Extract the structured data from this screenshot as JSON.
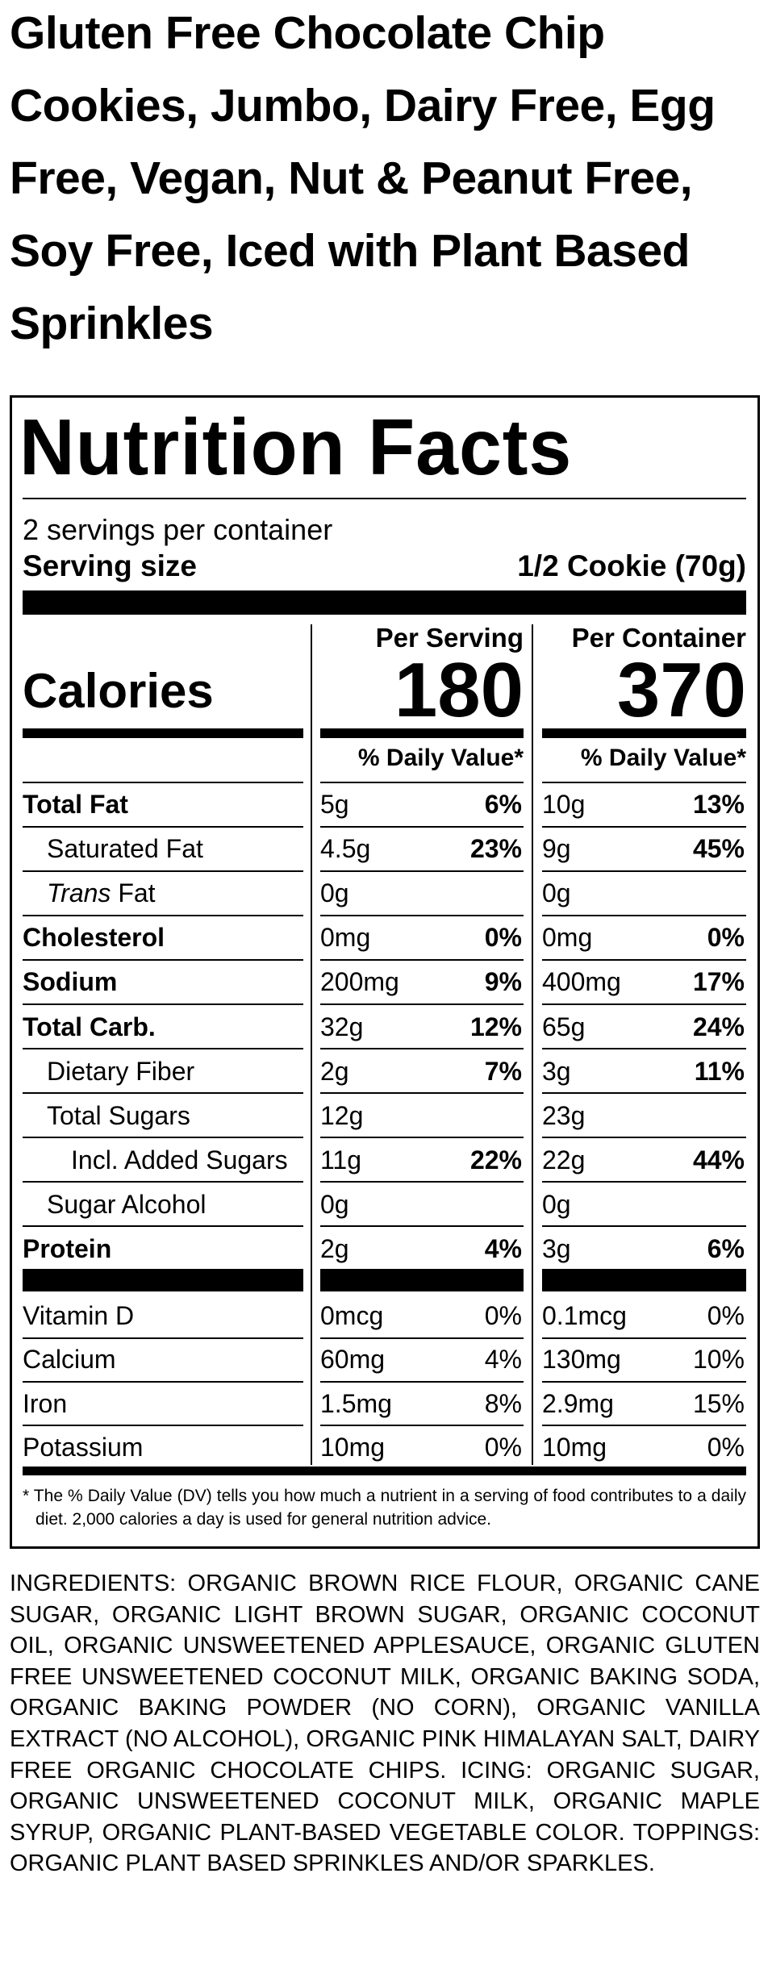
{
  "title": "Gluten Free Chocolate Chip Cookies, Jumbo, Dairy Free, Egg Free, Vegan, Nut & Peanut Free, Soy Free, Iced with Plant Based Sprinkles",
  "nutrition_facts": {
    "heading": "Nutrition Facts",
    "servings_per_container": "2 servings per container",
    "serving_size_label": "Serving size",
    "serving_size": "1/2 Cookie (70g)",
    "columns": [
      "Per Serving",
      "Per Container"
    ],
    "calories_label": "Calories",
    "calories": [
      180,
      370
    ],
    "dv_headers": [
      "% Daily Value*",
      "% Daily Value*"
    ],
    "rows": [
      {
        "name": "Total Fat",
        "bold": true,
        "serving": {
          "amount": "5g",
          "dv": "6%"
        },
        "container": {
          "amount": "10g",
          "dv": "13%"
        }
      },
      {
        "name": "Saturated Fat",
        "indent": 1,
        "serving": {
          "amount": "4.5g",
          "dv": "23%"
        },
        "container": {
          "amount": "9g",
          "dv": "45%"
        }
      },
      {
        "name_italic": "Trans",
        "name": "Fat",
        "indent": 1,
        "serving": {
          "amount": "0g"
        },
        "container": {
          "amount": "0g"
        }
      },
      {
        "name": "Cholesterol",
        "bold": true,
        "serving": {
          "amount": "0mg",
          "dv": "0%"
        },
        "container": {
          "amount": "0mg",
          "dv": "0%"
        }
      },
      {
        "name": "Sodium",
        "bold": true,
        "serving": {
          "amount": "200mg",
          "dv": "9%"
        },
        "container": {
          "amount": "400mg",
          "dv": "17%"
        }
      },
      {
        "name": "Total Carb.",
        "bold": true,
        "serving": {
          "amount": "32g",
          "dv": "12%"
        },
        "container": {
          "amount": "65g",
          "dv": "24%"
        }
      },
      {
        "name": "Dietary Fiber",
        "indent": 1,
        "serving": {
          "amount": "2g",
          "dv": "7%"
        },
        "container": {
          "amount": "3g",
          "dv": "11%"
        }
      },
      {
        "name": "Total Sugars",
        "indent": 1,
        "serving": {
          "amount": "12g"
        },
        "container": {
          "amount": "23g"
        }
      },
      {
        "name": "Incl. Added Sugars",
        "indent": 2,
        "serving": {
          "amount": "11g",
          "dv": "22%"
        },
        "container": {
          "amount": "22g",
          "dv": "44%"
        }
      },
      {
        "name": "Sugar Alcohol",
        "indent": 1,
        "serving": {
          "amount": "0g"
        },
        "container": {
          "amount": "0g"
        }
      },
      {
        "name": "Protein",
        "bold": true,
        "serving": {
          "amount": "2g",
          "dv": "4%"
        },
        "container": {
          "amount": "3g",
          "dv": "6%"
        }
      }
    ],
    "vitamins": [
      {
        "name": "Vitamin D",
        "serving": {
          "amount": "0mcg",
          "dv": "0%"
        },
        "container": {
          "amount": "0.1mcg",
          "dv": "0%"
        }
      },
      {
        "name": "Calcium",
        "serving": {
          "amount": "60mg",
          "dv": "4%"
        },
        "container": {
          "amount": "130mg",
          "dv": "10%"
        }
      },
      {
        "name": "Iron",
        "serving": {
          "amount": "1.5mg",
          "dv": "8%"
        },
        "container": {
          "amount": "2.9mg",
          "dv": "15%"
        }
      },
      {
        "name": "Potassium",
        "serving": {
          "amount": "10mg",
          "dv": "0%"
        },
        "container": {
          "amount": "10mg",
          "dv": "0%"
        }
      }
    ],
    "footnote": "* The % Daily Value (DV) tells you how much a nutrient in a serving of food contributes to a daily diet. 2,000 calories a day is used for general nutrition advice."
  },
  "ingredients": "INGREDIENTS: ORGANIC BROWN RICE FLOUR, ORGANIC CANE SUGAR, ORGANIC LIGHT BROWN SUGAR, ORGANIC COCONUT OIL, ORGANIC UNSWEETENED APPLESAUCE, ORGANIC GLUTEN FREE UNSWEETENED COCONUT MILK, ORGANIC BAKING SODA, ORGANIC BAKING POWDER (NO CORN), ORGANIC VANILLA EXTRACT (NO ALCOHOL), ORGANIC PINK HIMALAYAN SALT, DAIRY FREE ORGANIC CHOCOLATE CHIPS. ICING: ORGANIC SUGAR, ORGANIC UNSWEETENED COCONUT MILK, ORGANIC MAPLE SYRUP, ORGANIC PLANT-BASED VEGETABLE COLOR. TOPPINGS: ORGANIC PLANT BASED SPRINKLES AND/OR SPARKLES."
}
